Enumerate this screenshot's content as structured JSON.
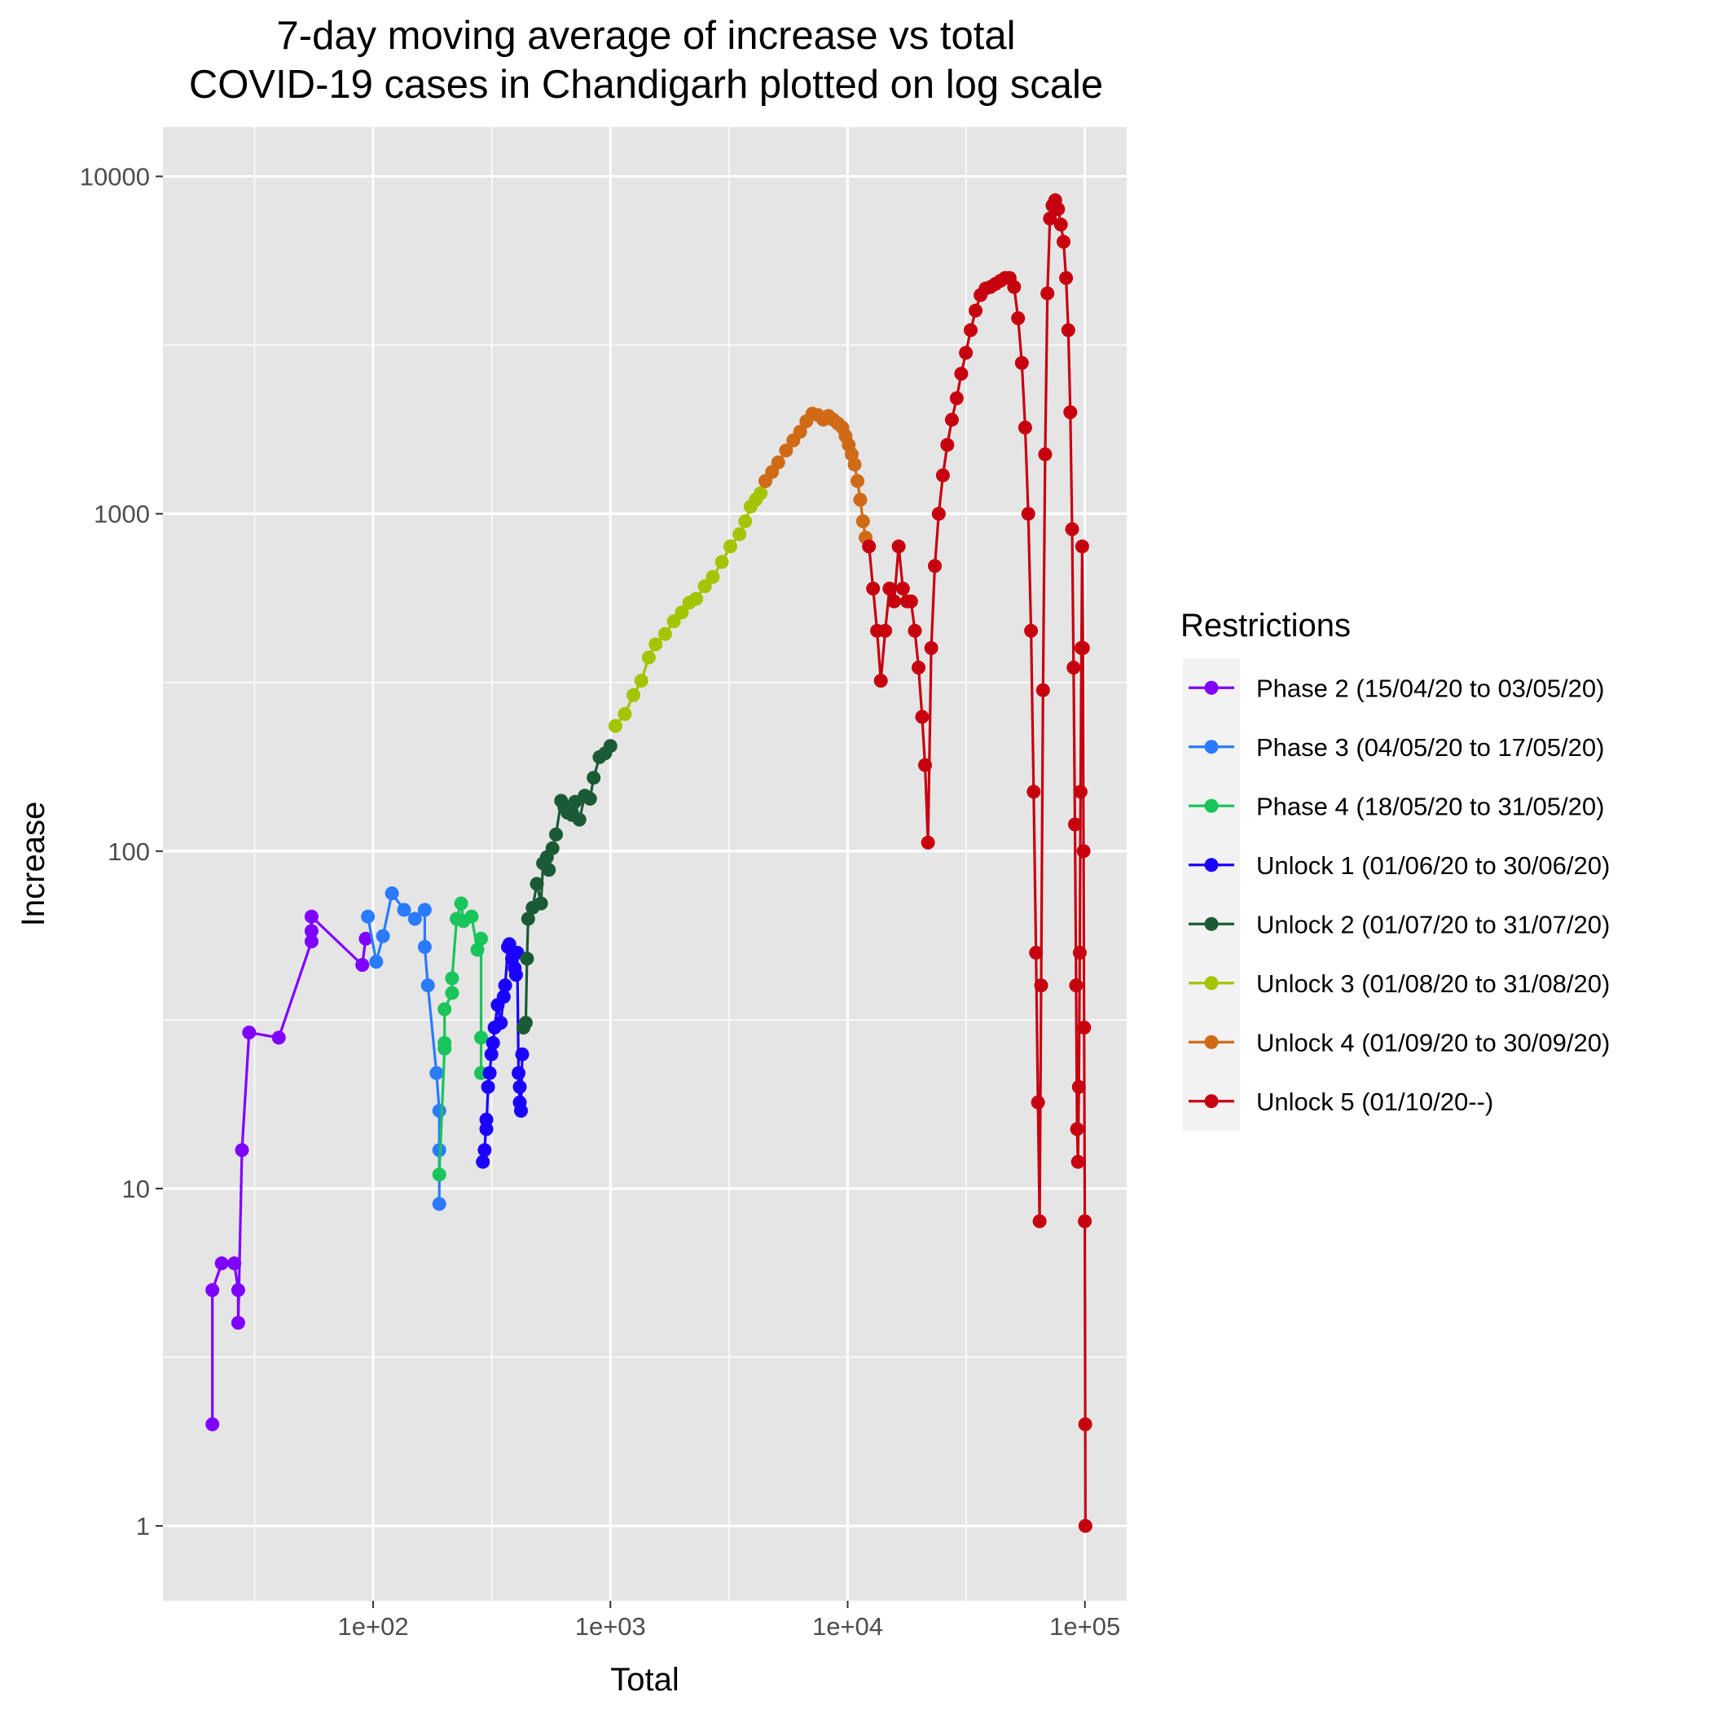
{
  "chart_data": {
    "type": "line",
    "title": "7-day moving average of increase vs total\nCOVID-19 cases in Chandigarh plotted on log scale",
    "xlabel": "Total",
    "ylabel": "Increase",
    "x_scale": "log10",
    "y_scale": "log10",
    "xlim": [
      13,
      150000
    ],
    "ylim": [
      0.6,
      14000
    ],
    "x_ticks": [
      100,
      1000,
      10000,
      100000
    ],
    "x_tick_labels": [
      "1e+02",
      "1e+03",
      "1e+04",
      "1e+05"
    ],
    "y_ticks": [
      1,
      10,
      100,
      1000,
      10000
    ],
    "y_tick_labels": [
      "1",
      "10",
      "100",
      "1000",
      "10000"
    ],
    "grid": true,
    "panel_background": "#e5e5e5",
    "legend": {
      "title": "Restrictions",
      "position": "right"
    },
    "series": [
      {
        "name": "Phase 2 (15/04/20 to 03/05/20)",
        "color": "#7f00ff",
        "points": [
          [
            21,
            2
          ],
          [
            21,
            5
          ],
          [
            23,
            6
          ],
          [
            26,
            6
          ],
          [
            27,
            5
          ],
          [
            27,
            4
          ],
          [
            28,
            13
          ],
          [
            30,
            29
          ],
          [
            40,
            28
          ],
          [
            55,
            54
          ],
          [
            55,
            58
          ],
          [
            55,
            64
          ],
          [
            90,
            46
          ],
          [
            93,
            55
          ]
        ]
      },
      {
        "name": "Phase 3 (04/05/20 to 17/05/20)",
        "color": "#2a7bff",
        "points": [
          [
            95,
            64
          ],
          [
            103,
            47
          ],
          [
            110,
            56
          ],
          [
            120,
            75
          ],
          [
            135,
            67
          ],
          [
            150,
            63
          ],
          [
            165,
            67
          ],
          [
            165,
            52
          ],
          [
            170,
            40
          ],
          [
            185,
            22
          ],
          [
            190,
            17
          ],
          [
            190,
            13
          ],
          [
            190,
            9
          ]
        ]
      },
      {
        "name": "Phase 4 (18/05/20 to 31/05/20)",
        "color": "#19c45a",
        "points": [
          [
            190,
            11
          ],
          [
            200,
            26
          ],
          [
            200,
            27
          ],
          [
            200,
            34
          ],
          [
            215,
            38
          ],
          [
            215,
            42
          ],
          [
            225,
            63
          ],
          [
            235,
            70
          ],
          [
            240,
            62
          ],
          [
            260,
            64
          ],
          [
            275,
            51
          ],
          [
            285,
            55
          ],
          [
            285,
            28
          ],
          [
            285,
            22
          ]
        ]
      },
      {
        "name": "Unlock 1 (01/06/20 to 30/06/20)",
        "color": "#1a00ff",
        "points": [
          [
            290,
            12
          ],
          [
            295,
            13
          ],
          [
            300,
            16
          ],
          [
            300,
            15
          ],
          [
            305,
            20
          ],
          [
            310,
            22
          ],
          [
            315,
            25
          ],
          [
            320,
            27
          ],
          [
            325,
            30
          ],
          [
            335,
            35
          ],
          [
            345,
            31
          ],
          [
            355,
            37
          ],
          [
            360,
            40
          ],
          [
            370,
            52
          ],
          [
            375,
            53
          ],
          [
            385,
            48
          ],
          [
            395,
            45
          ],
          [
            400,
            43
          ],
          [
            405,
            50
          ],
          [
            410,
            22
          ],
          [
            415,
            18
          ],
          [
            415,
            20
          ],
          [
            420,
            17
          ],
          [
            425,
            25
          ]
        ]
      },
      {
        "name": "Unlock 2 (01/07/20 to 31/07/20)",
        "color": "#1a5a35",
        "points": [
          [
            430,
            30
          ],
          [
            440,
            31
          ],
          [
            445,
            48
          ],
          [
            450,
            63
          ],
          [
            470,
            68
          ],
          [
            490,
            80
          ],
          [
            510,
            70
          ],
          [
            520,
            92
          ],
          [
            540,
            96
          ],
          [
            550,
            88
          ],
          [
            570,
            102
          ],
          [
            590,
            112
          ],
          [
            620,
            141
          ],
          [
            640,
            135
          ],
          [
            660,
            130
          ],
          [
            690,
            128
          ],
          [
            710,
            140
          ],
          [
            740,
            124
          ],
          [
            780,
            146
          ],
          [
            820,
            143
          ],
          [
            850,
            165
          ],
          [
            900,
            190
          ],
          [
            950,
            195
          ],
          [
            1000,
            205
          ]
        ]
      },
      {
        "name": "Unlock 3 (01/08/20 to 31/08/20)",
        "color": "#a3c500",
        "points": [
          [
            1050,
            235
          ],
          [
            1150,
            255
          ],
          [
            1250,
            290
          ],
          [
            1350,
            320
          ],
          [
            1450,
            375
          ],
          [
            1550,
            410
          ],
          [
            1700,
            440
          ],
          [
            1850,
            480
          ],
          [
            2000,
            510
          ],
          [
            2150,
            545
          ],
          [
            2300,
            560
          ],
          [
            2500,
            610
          ],
          [
            2700,
            650
          ],
          [
            2950,
            720
          ],
          [
            3200,
            800
          ],
          [
            3500,
            870
          ],
          [
            3700,
            950
          ],
          [
            3900,
            1050
          ],
          [
            4100,
            1100
          ],
          [
            4300,
            1150
          ]
        ]
      },
      {
        "name": "Unlock 4 (01/09/20 to 30/09/20)",
        "color": "#cf6a17",
        "points": [
          [
            4500,
            1250
          ],
          [
            4800,
            1330
          ],
          [
            5100,
            1420
          ],
          [
            5500,
            1540
          ],
          [
            5900,
            1650
          ],
          [
            6300,
            1750
          ],
          [
            6700,
            1880
          ],
          [
            7100,
            1980
          ],
          [
            7500,
            1960
          ],
          [
            7900,
            1900
          ],
          [
            8300,
            1950
          ],
          [
            8700,
            1900
          ],
          [
            9100,
            1850
          ],
          [
            9500,
            1800
          ],
          [
            9800,
            1700
          ],
          [
            10100,
            1600
          ],
          [
            10400,
            1500
          ],
          [
            10700,
            1400
          ],
          [
            11000,
            1250
          ],
          [
            11300,
            1100
          ],
          [
            11600,
            950
          ],
          [
            11900,
            850
          ]
        ]
      },
      {
        "name": "Unlock 5 (01/10/20--)",
        "color": "#c7000f",
        "points": [
          [
            12300,
            800
          ],
          [
            12800,
            600
          ],
          [
            13300,
            450
          ],
          [
            13800,
            320
          ],
          [
            14400,
            450
          ],
          [
            15000,
            600
          ],
          [
            15700,
            550
          ],
          [
            16400,
            800
          ],
          [
            17100,
            600
          ],
          [
            17800,
            550
          ],
          [
            18500,
            550
          ],
          [
            19200,
            450
          ],
          [
            19900,
            350
          ],
          [
            20600,
            250
          ],
          [
            21200,
            180
          ],
          [
            21800,
            106
          ],
          [
            22500,
            400
          ],
          [
            23300,
            700
          ],
          [
            24200,
            1000
          ],
          [
            25200,
            1300
          ],
          [
            26300,
            1600
          ],
          [
            27500,
            1900
          ],
          [
            28800,
            2200
          ],
          [
            30100,
            2600
          ],
          [
            31500,
            3000
          ],
          [
            33000,
            3500
          ],
          [
            34600,
            4000
          ],
          [
            36300,
            4450
          ],
          [
            38100,
            4650
          ],
          [
            40000,
            4700
          ],
          [
            42000,
            4800
          ],
          [
            44000,
            4900
          ],
          [
            46100,
            5000
          ],
          [
            48200,
            5000
          ],
          [
            50300,
            4700
          ],
          [
            52300,
            3800
          ],
          [
            54200,
            2800
          ],
          [
            56000,
            1800
          ],
          [
            57700,
            1000
          ],
          [
            59300,
            450
          ],
          [
            60800,
            150
          ],
          [
            62200,
            50
          ],
          [
            63400,
            18
          ],
          [
            64400,
            8
          ],
          [
            65400,
            40
          ],
          [
            66600,
            300
          ],
          [
            68000,
            1500
          ],
          [
            69500,
            4500
          ],
          [
            71200,
            7500
          ],
          [
            73000,
            8200
          ],
          [
            75000,
            8500
          ],
          [
            77100,
            8000
          ],
          [
            79200,
            7200
          ],
          [
            81300,
            6400
          ],
          [
            83300,
            5000
          ],
          [
            85100,
            3500
          ],
          [
            86800,
            2000
          ],
          [
            88300,
            900
          ],
          [
            89600,
            350
          ],
          [
            90800,
            120
          ],
          [
            91800,
            40
          ],
          [
            92700,
            15
          ],
          [
            93500,
            12
          ],
          [
            94300,
            20
          ],
          [
            95100,
            50
          ],
          [
            95900,
            150
          ],
          [
            96700,
            400
          ],
          [
            97400,
            800
          ],
          [
            98100,
            400
          ],
          [
            98700,
            100
          ],
          [
            99300,
            30
          ],
          [
            99900,
            8
          ],
          [
            100300,
            2
          ],
          [
            100500,
            1
          ]
        ]
      }
    ]
  }
}
